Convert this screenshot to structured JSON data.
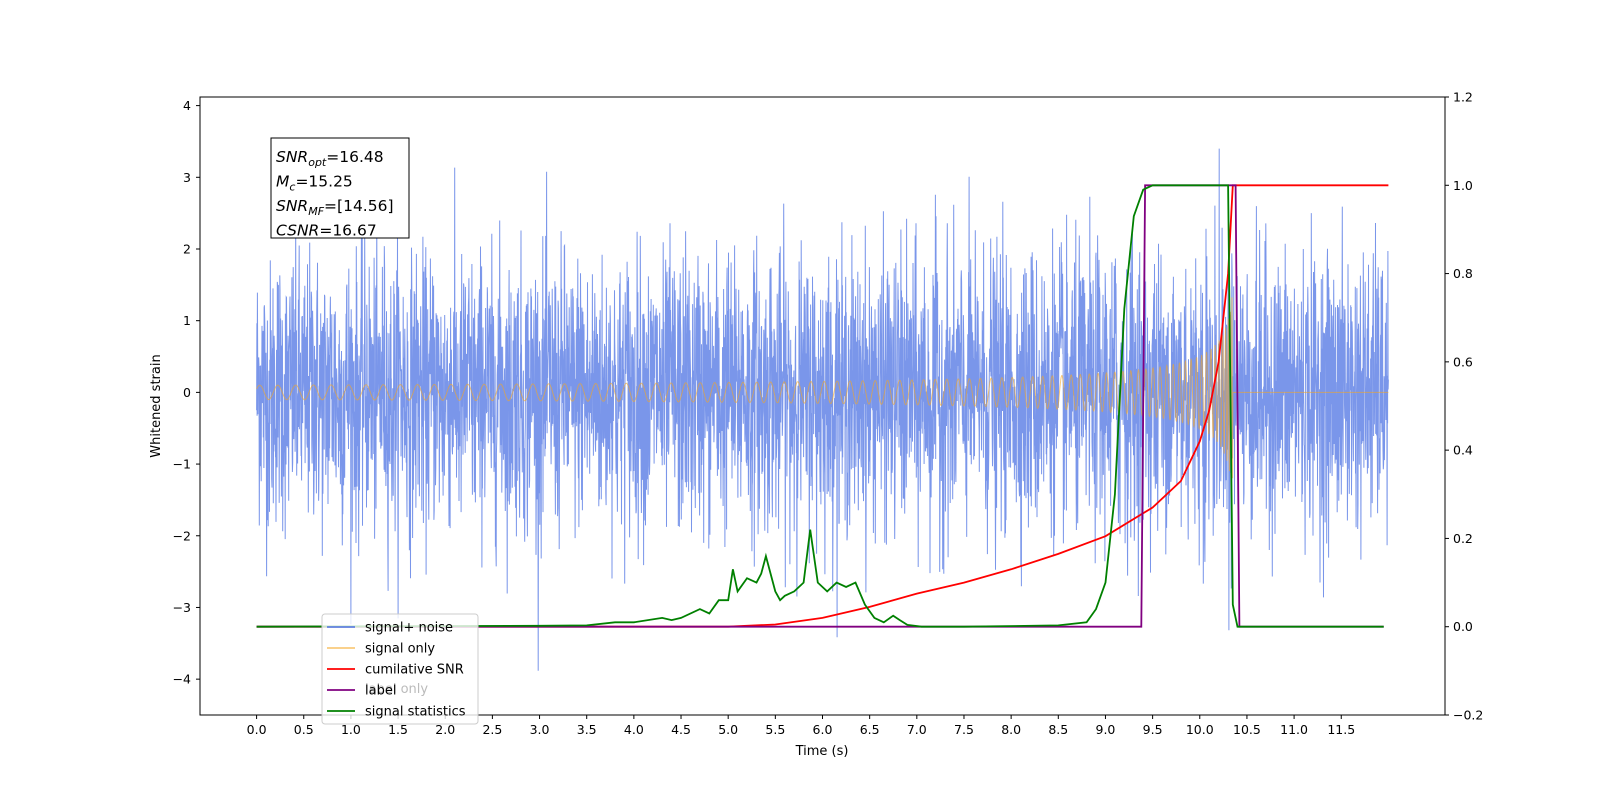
{
  "chart_data": {
    "type": "line",
    "xlabel": "Time (s)",
    "ylabel": "Whitened strain",
    "xlim": [
      -0.6,
      12.6
    ],
    "ylim": [
      -4.5,
      4.12
    ],
    "y2lim": [
      -0.2,
      1.2
    ],
    "x_ticks": [
      "0.0",
      "0.5",
      "1.0",
      "1.5",
      "2.0",
      "2.5",
      "3.0",
      "3.5",
      "4.0",
      "4.5",
      "5.0",
      "5.5",
      "6.0",
      "6.5",
      "7.0",
      "7.5",
      "8.0",
      "8.5",
      "9.0",
      "9.5",
      "10.0",
      "10.5",
      "11.0",
      "11.5"
    ],
    "x_tick_values": [
      0,
      0.5,
      1,
      1.5,
      2,
      2.5,
      3,
      3.5,
      4,
      4.5,
      5,
      5.5,
      6,
      6.5,
      7,
      7.5,
      8,
      8.5,
      9,
      9.5,
      10,
      10.5,
      11,
      11.5
    ],
    "y_ticks": [
      "−4",
      "−3",
      "−2",
      "−1",
      "0",
      "1",
      "2",
      "3",
      "4"
    ],
    "y_tick_values": [
      -4,
      -3,
      -2,
      -1,
      0,
      1,
      2,
      3,
      4
    ],
    "y2_ticks": [
      "−0.2",
      "0.0",
      "0.2",
      "0.4",
      "0.6",
      "0.8",
      "1.0",
      "1.2"
    ],
    "y2_tick_values": [
      -0.2,
      0,
      0.2,
      0.4,
      0.6,
      0.8,
      1.0,
      1.2
    ],
    "legend_location": "lower-left",
    "annotation": {
      "lines": [
        {
          "sym": "SNR",
          "sub": "opt",
          "text": "=16.48"
        },
        {
          "sym": "M",
          "sub": "c",
          "text": "=15.25"
        },
        {
          "sym": "SNR",
          "sub": "MF",
          "text": "=[14.56]"
        },
        {
          "sym": "CSNR",
          "sub": "",
          "text": "=16.67"
        }
      ]
    },
    "series": [
      {
        "name": "signal+ noise",
        "axis": "left",
        "color": "#4169e1",
        "noise_std": 0.95,
        "t_start": 0,
        "t_end": 12
      },
      {
        "name": "signal only",
        "axis": "left",
        "color": "#f5a623",
        "chirp_start": 5.5,
        "merger": 10.35,
        "peak_amp": 1.6
      },
      {
        "name": "cumilative SNR",
        "axis": "right",
        "color": "#ff0000",
        "x": [
          0,
          5.0,
          5.5,
          6.0,
          6.5,
          7.0,
          7.5,
          8.0,
          8.5,
          9.0,
          9.5,
          9.8,
          10.0,
          10.1,
          10.2,
          10.3,
          10.35,
          10.4,
          12.0
        ],
        "y": [
          0,
          0,
          0.005,
          0.02,
          0.045,
          0.075,
          0.1,
          0.13,
          0.165,
          0.205,
          0.27,
          0.33,
          0.42,
          0.49,
          0.6,
          0.8,
          1.0,
          1.0,
          1.0
        ]
      },
      {
        "name": "label",
        "axis": "right",
        "color": "#800080",
        "x": [
          0,
          9.38,
          9.42,
          10.38,
          10.42,
          11.95
        ],
        "y": [
          0,
          0,
          1,
          1,
          0,
          0
        ]
      },
      {
        "name": "signal statistics",
        "axis": "right",
        "color": "#008000",
        "x": [
          0,
          3.0,
          3.5,
          3.8,
          4.0,
          4.3,
          4.4,
          4.5,
          4.7,
          4.8,
          4.9,
          5.0,
          5.05,
          5.1,
          5.2,
          5.3,
          5.35,
          5.4,
          5.5,
          5.55,
          5.6,
          5.7,
          5.8,
          5.87,
          5.95,
          6.05,
          6.15,
          6.25,
          6.35,
          6.45,
          6.55,
          6.65,
          6.75,
          6.82,
          6.9,
          7.05,
          7.5,
          8.5,
          8.8,
          8.9,
          9.0,
          9.1,
          9.2,
          9.3,
          9.4,
          9.5,
          9.6,
          9.8,
          10.0,
          10.3,
          10.35,
          10.4,
          11.95
        ],
        "y": [
          0,
          0.002,
          0.003,
          0.01,
          0.01,
          0.02,
          0.015,
          0.02,
          0.04,
          0.03,
          0.06,
          0.06,
          0.13,
          0.08,
          0.11,
          0.1,
          0.12,
          0.16,
          0.08,
          0.06,
          0.07,
          0.08,
          0.1,
          0.22,
          0.1,
          0.08,
          0.1,
          0.09,
          0.1,
          0.05,
          0.02,
          0.01,
          0.025,
          0.015,
          0.004,
          0.0,
          0.0,
          0.003,
          0.01,
          0.04,
          0.1,
          0.3,
          0.72,
          0.93,
          0.99,
          1.0,
          1.0,
          1.0,
          1.0,
          1.0,
          0.05,
          0.0,
          0.0
        ]
      }
    ],
    "legend_extra_entry": "label only"
  }
}
